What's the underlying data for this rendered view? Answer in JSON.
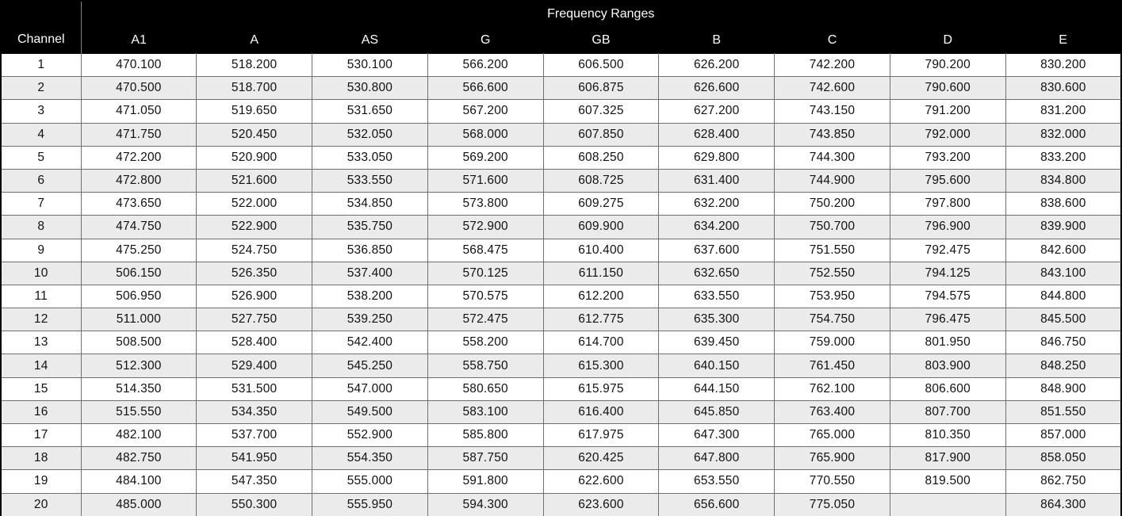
{
  "table": {
    "title": "Frequency Ranges",
    "channel_header": "Channel",
    "columns": [
      "A1",
      "A",
      "AS",
      "G",
      "GB",
      "B",
      "C",
      "D",
      "E"
    ],
    "rows": [
      {
        "channel": "1",
        "values": [
          "470.100",
          "518.200",
          "530.100",
          "566.200",
          "606.500",
          "626.200",
          "742.200",
          "790.200",
          "830.200"
        ]
      },
      {
        "channel": "2",
        "values": [
          "470.500",
          "518.700",
          "530.800",
          "566.600",
          "606.875",
          "626.600",
          "742.600",
          "790.600",
          "830.600"
        ]
      },
      {
        "channel": "3",
        "values": [
          "471.050",
          "519.650",
          "531.650",
          "567.200",
          "607.325",
          "627.200",
          "743.150",
          "791.200",
          "831.200"
        ]
      },
      {
        "channel": "4",
        "values": [
          "471.750",
          "520.450",
          "532.050",
          "568.000",
          "607.850",
          "628.400",
          "743.850",
          "792.000",
          "832.000"
        ]
      },
      {
        "channel": "5",
        "values": [
          "472.200",
          "520.900",
          "533.050",
          "569.200",
          "608.250",
          "629.800",
          "744.300",
          "793.200",
          "833.200"
        ]
      },
      {
        "channel": "6",
        "values": [
          "472.800",
          "521.600",
          "533.550",
          "571.600",
          "608.725",
          "631.400",
          "744.900",
          "795.600",
          "834.800"
        ]
      },
      {
        "channel": "7",
        "values": [
          "473.650",
          "522.000",
          "534.850",
          "573.800",
          "609.275",
          "632.200",
          "750.200",
          "797.800",
          "838.600"
        ]
      },
      {
        "channel": "8",
        "values": [
          "474.750",
          "522.900",
          "535.750",
          "572.900",
          "609.900",
          "634.200",
          "750.700",
          "796.900",
          "839.900"
        ]
      },
      {
        "channel": "9",
        "values": [
          "475.250",
          "524.750",
          "536.850",
          "568.475",
          "610.400",
          "637.600",
          "751.550",
          "792.475",
          "842.600"
        ]
      },
      {
        "channel": "10",
        "values": [
          "506.150",
          "526.350",
          "537.400",
          "570.125",
          "611.150",
          "632.650",
          "752.550",
          "794.125",
          "843.100"
        ]
      },
      {
        "channel": "11",
        "values": [
          "506.950",
          "526.900",
          "538.200",
          "570.575",
          "612.200",
          "633.550",
          "753.950",
          "794.575",
          "844.800"
        ]
      },
      {
        "channel": "12",
        "values": [
          "511.000",
          "527.750",
          "539.250",
          "572.475",
          "612.775",
          "635.300",
          "754.750",
          "796.475",
          "845.500"
        ]
      },
      {
        "channel": "13",
        "values": [
          "508.500",
          "528.400",
          "542.400",
          "558.200",
          "614.700",
          "639.450",
          "759.000",
          "801.950",
          "846.750"
        ]
      },
      {
        "channel": "14",
        "values": [
          "512.300",
          "529.400",
          "545.250",
          "558.750",
          "615.300",
          "640.150",
          "761.450",
          "803.900",
          "848.250"
        ]
      },
      {
        "channel": "15",
        "values": [
          "514.350",
          "531.500",
          "547.000",
          "580.650",
          "615.975",
          "644.150",
          "762.100",
          "806.600",
          "848.900"
        ]
      },
      {
        "channel": "16",
        "values": [
          "515.550",
          "534.350",
          "549.500",
          "583.100",
          "616.400",
          "645.850",
          "763.400",
          "807.700",
          "851.550"
        ]
      },
      {
        "channel": "17",
        "values": [
          "482.100",
          "537.700",
          "552.900",
          "585.800",
          "617.975",
          "647.300",
          "765.000",
          "810.350",
          "857.000"
        ]
      },
      {
        "channel": "18",
        "values": [
          "482.750",
          "541.950",
          "554.350",
          "587.750",
          "620.425",
          "647.800",
          "765.900",
          "817.900",
          "858.050"
        ]
      },
      {
        "channel": "19",
        "values": [
          "484.100",
          "547.350",
          "555.000",
          "591.800",
          "622.600",
          "653.550",
          "770.550",
          "819.500",
          "862.750"
        ]
      },
      {
        "channel": "20",
        "values": [
          "485.000",
          "550.300",
          "555.950",
          "594.300",
          "623.600",
          "656.600",
          "775.050",
          "",
          "864.300"
        ]
      }
    ]
  },
  "colors": {
    "header_bg": "#000000",
    "header_text": "#ffffff",
    "row_alt_bg": "#ebebeb",
    "grid_border": "#6f6f6f",
    "outer_border": "#000000"
  },
  "chart_data": {
    "type": "table",
    "title": "Frequency Ranges",
    "row_key_label": "Channel",
    "columns": [
      "A1",
      "A",
      "AS",
      "G",
      "GB",
      "B",
      "C",
      "D",
      "E"
    ],
    "row_keys": [
      1,
      2,
      3,
      4,
      5,
      6,
      7,
      8,
      9,
      10,
      11,
      12,
      13,
      14,
      15,
      16,
      17,
      18,
      19,
      20
    ],
    "series": [
      {
        "name": "A1",
        "values": [
          470.1,
          470.5,
          471.05,
          471.75,
          472.2,
          472.8,
          473.65,
          474.75,
          475.25,
          506.15,
          506.95,
          511.0,
          508.5,
          512.3,
          514.35,
          515.55,
          482.1,
          482.75,
          484.1,
          485.0
        ]
      },
      {
        "name": "A",
        "values": [
          518.2,
          518.7,
          519.65,
          520.45,
          520.9,
          521.6,
          522.0,
          522.9,
          524.75,
          526.35,
          526.9,
          527.75,
          528.4,
          529.4,
          531.5,
          534.35,
          537.7,
          541.95,
          547.35,
          550.3
        ]
      },
      {
        "name": "AS",
        "values": [
          530.1,
          530.8,
          531.65,
          532.05,
          533.05,
          533.55,
          534.85,
          535.75,
          536.85,
          537.4,
          538.2,
          539.25,
          542.4,
          545.25,
          547.0,
          549.5,
          552.9,
          554.35,
          555.0,
          555.95
        ]
      },
      {
        "name": "G",
        "values": [
          566.2,
          566.6,
          567.2,
          568.0,
          569.2,
          571.6,
          573.8,
          572.9,
          568.475,
          570.125,
          570.575,
          572.475,
          558.2,
          558.75,
          580.65,
          583.1,
          585.8,
          587.75,
          591.8,
          594.3
        ]
      },
      {
        "name": "GB",
        "values": [
          606.5,
          606.875,
          607.325,
          607.85,
          608.25,
          608.725,
          609.275,
          609.9,
          610.4,
          611.15,
          612.2,
          612.775,
          614.7,
          615.3,
          615.975,
          616.4,
          617.975,
          620.425,
          622.6,
          623.6
        ]
      },
      {
        "name": "B",
        "values": [
          626.2,
          626.6,
          627.2,
          628.4,
          629.8,
          631.4,
          632.2,
          634.2,
          637.6,
          632.65,
          633.55,
          635.3,
          639.45,
          640.15,
          644.15,
          645.85,
          647.3,
          647.8,
          653.55,
          656.6
        ]
      },
      {
        "name": "C",
        "values": [
          742.2,
          742.6,
          743.15,
          743.85,
          744.3,
          744.9,
          750.2,
          750.7,
          751.55,
          752.55,
          753.95,
          754.75,
          759.0,
          761.45,
          762.1,
          763.4,
          765.0,
          765.9,
          770.55,
          775.05
        ]
      },
      {
        "name": "D",
        "values": [
          790.2,
          790.6,
          791.2,
          792.0,
          793.2,
          795.6,
          797.8,
          796.9,
          792.475,
          794.125,
          794.575,
          796.475,
          801.95,
          803.9,
          806.6,
          807.7,
          810.35,
          817.9,
          819.5,
          null
        ]
      },
      {
        "name": "E",
        "values": [
          830.2,
          830.6,
          831.2,
          832.0,
          833.2,
          834.8,
          838.6,
          839.9,
          842.6,
          843.1,
          844.8,
          845.5,
          846.75,
          848.25,
          848.9,
          851.55,
          857.0,
          858.05,
          862.75,
          864.3
        ]
      }
    ]
  }
}
